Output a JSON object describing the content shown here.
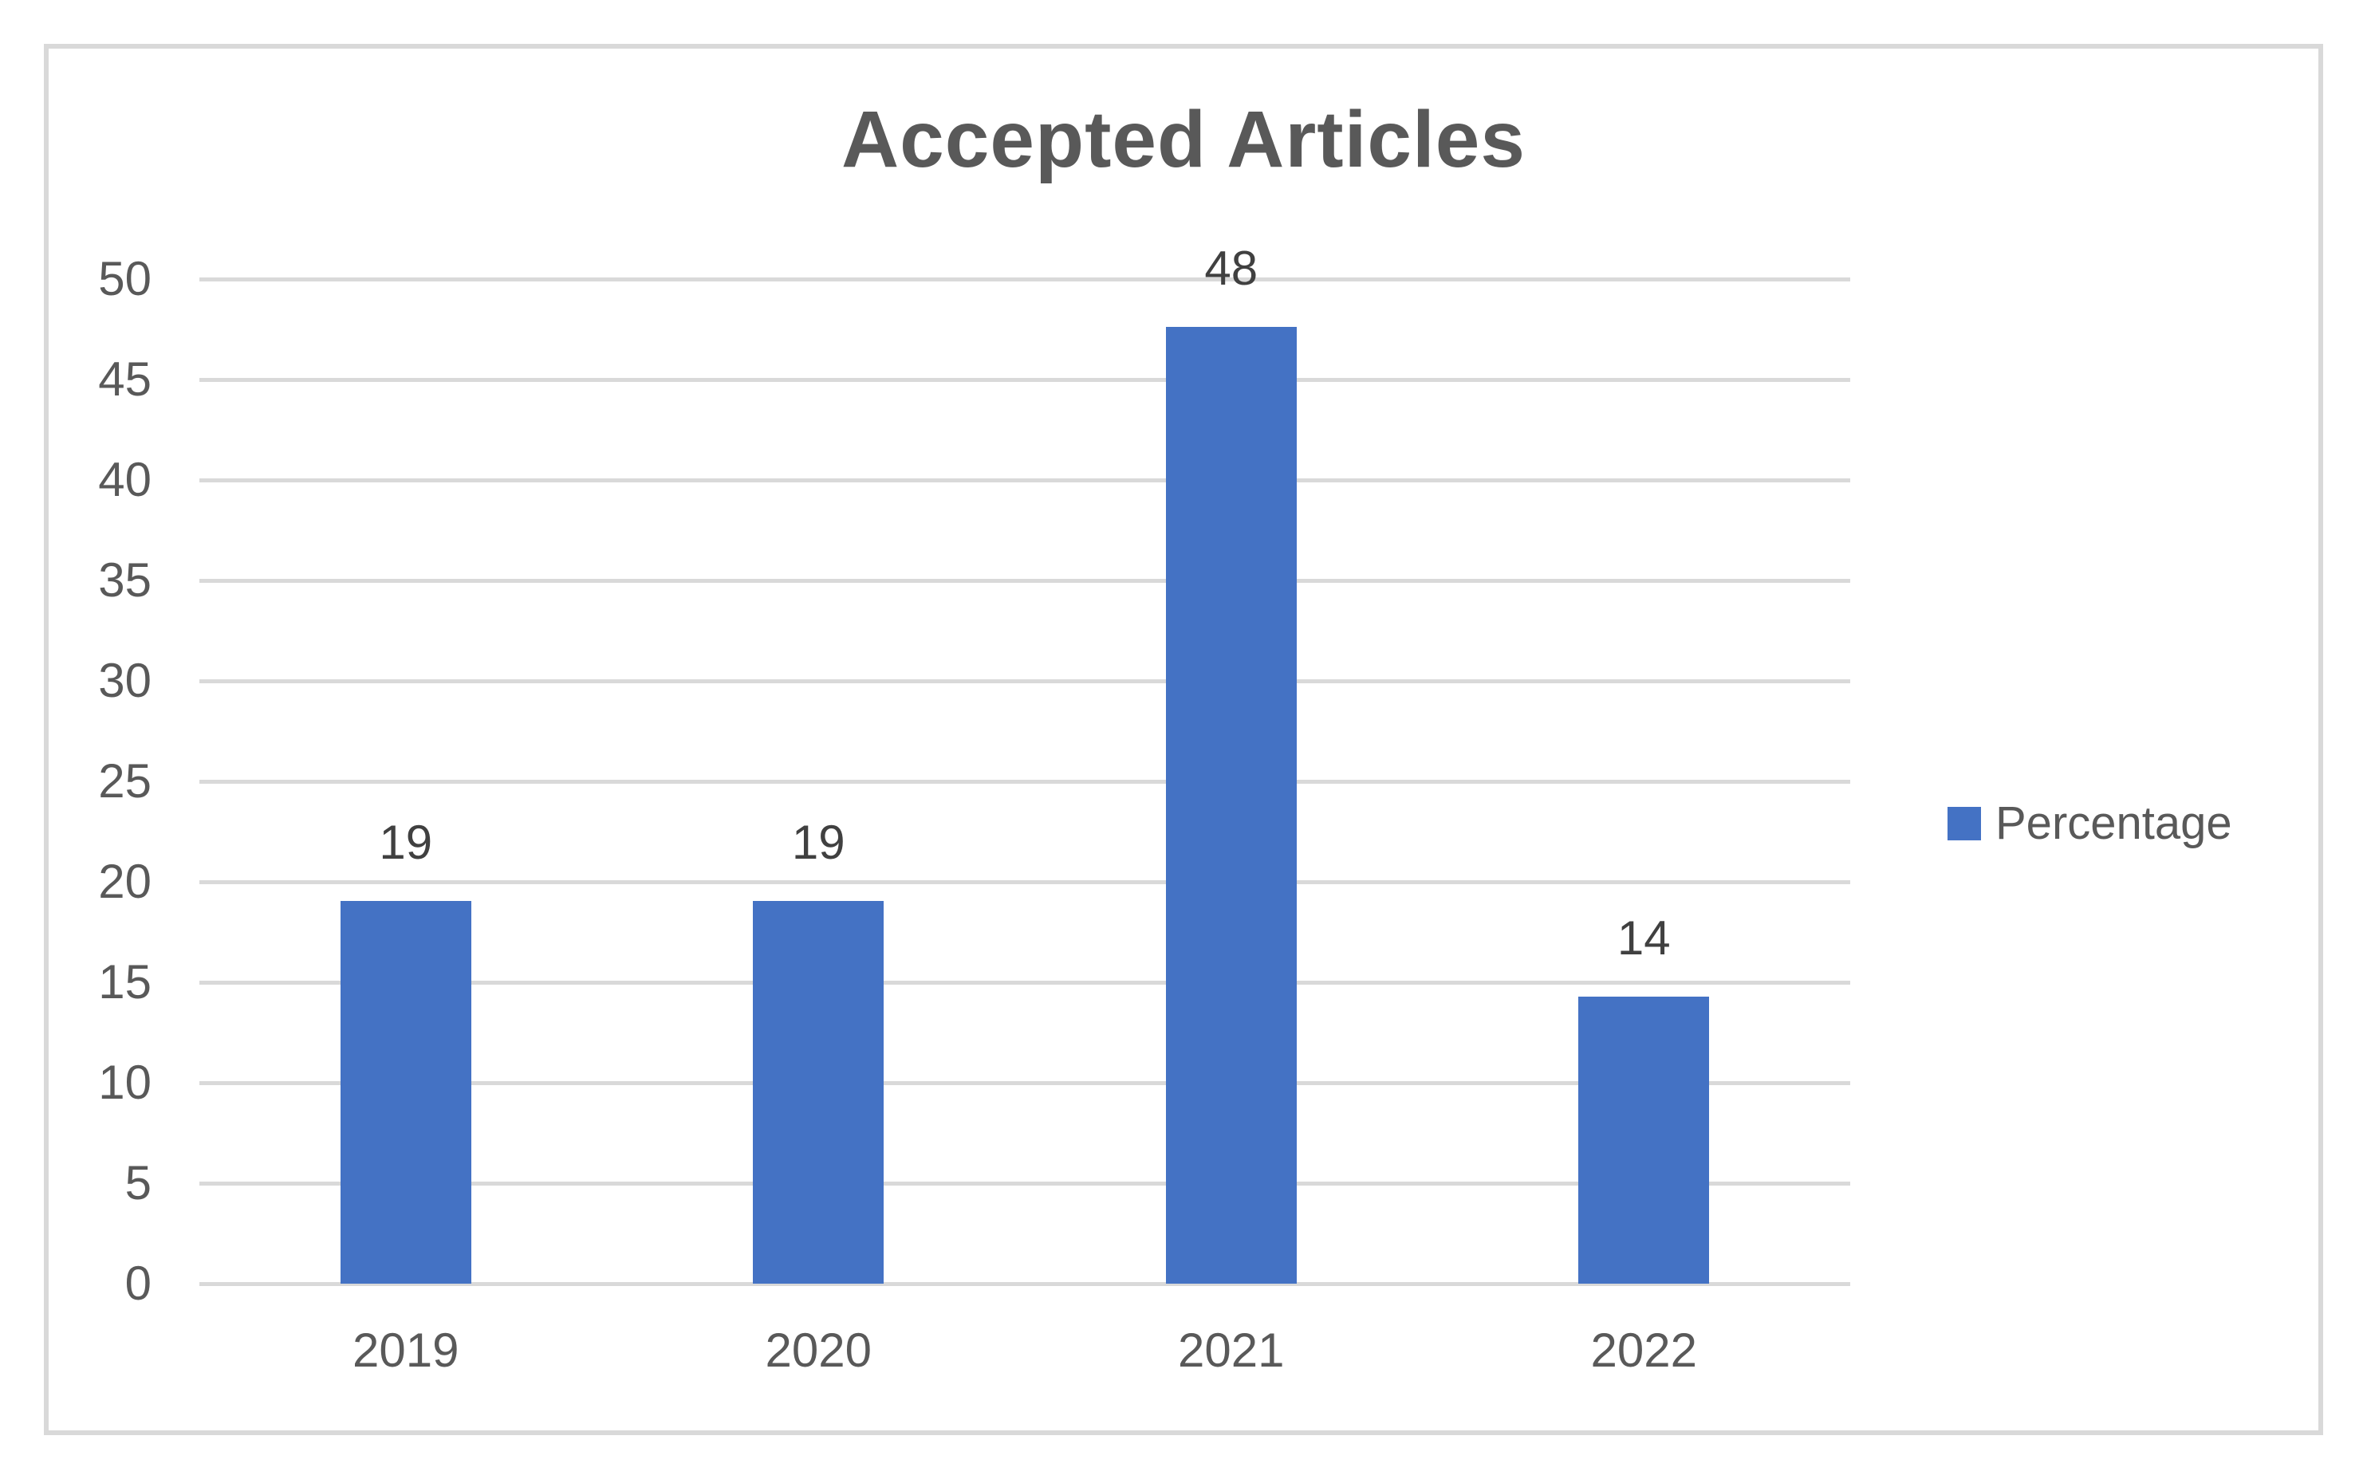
{
  "chart_data": {
    "type": "bar",
    "title": "Accepted Articles",
    "categories": [
      "2019",
      "2020",
      "2021",
      "2022"
    ],
    "series": [
      {
        "name": "Percentage",
        "values": [
          19,
          19,
          48,
          14
        ],
        "plotted_values": [
          19.05,
          19.05,
          47.62,
          14.29
        ]
      }
    ],
    "data_labels": [
      "19",
      "19",
      "48",
      "14"
    ],
    "xlabel": "",
    "ylabel": "",
    "ylim": [
      0,
      50
    ],
    "ytick_step": 5,
    "yticks": [
      "0",
      "5",
      "10",
      "15",
      "20",
      "25",
      "30",
      "35",
      "40",
      "45",
      "50"
    ],
    "grid": true,
    "legend_position": "right",
    "colors": {
      "bar": "#4472c4",
      "gridline": "#d9d9d9",
      "frame_border": "#d9d9d9",
      "background": "#ffffff",
      "title_text": "#595959",
      "tick_text": "#595959",
      "data_label_text": "#404040",
      "legend_text": "#595959"
    }
  }
}
